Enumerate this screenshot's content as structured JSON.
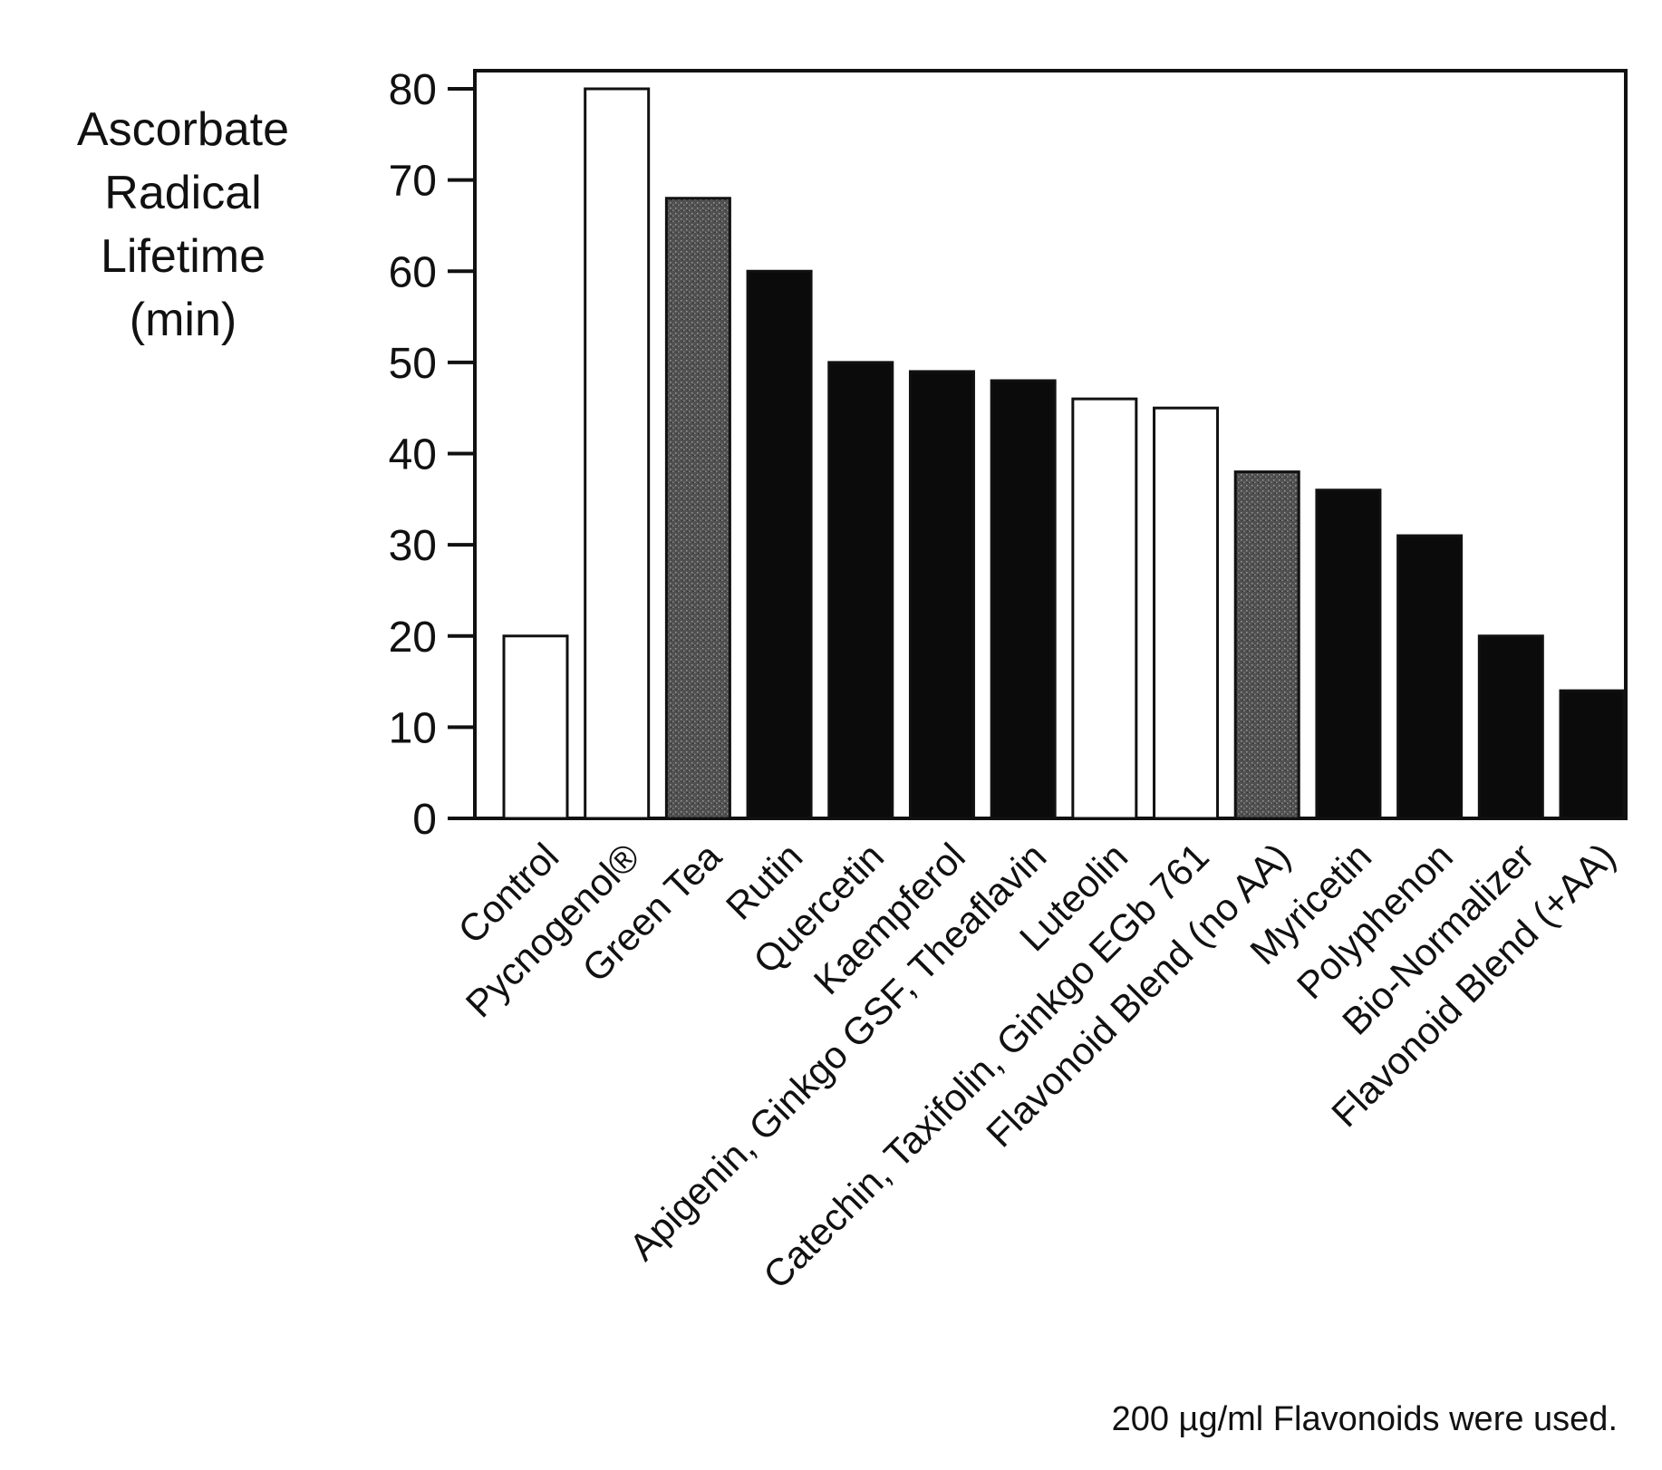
{
  "chart_data": {
    "type": "bar",
    "ylabel": [
      "Ascorbate",
      "Radical",
      "Lifetime",
      "(min)"
    ],
    "xlabel": "",
    "ylim": [
      0,
      80
    ],
    "yticks": [
      0,
      10,
      20,
      30,
      40,
      50,
      60,
      70,
      80
    ],
    "grid": false,
    "legend": "none",
    "categories": [
      "Control",
      "Pycnogenol®",
      "Green Tea",
      "Rutin",
      "Quercetin",
      "Kaempferol",
      "Apigenin, Ginkgo GSF, Theaflavin",
      "Luteolin",
      "Catechin, Taxifolin, Ginkgo EGb 761",
      "Flavonoid Blend (no AA)",
      "Myricetin",
      "Polyphenon",
      "Bio-Normalizer",
      "Flavonoid Blend (+AA)"
    ],
    "values": [
      20,
      80,
      68,
      60,
      50,
      49,
      48,
      46,
      45,
      38,
      36,
      31,
      20,
      14
    ],
    "fills": [
      "white",
      "white",
      "gray",
      "black",
      "black",
      "black",
      "black",
      "white",
      "white",
      "gray",
      "black",
      "black",
      "black",
      "black"
    ],
    "colors": {
      "white": "#ffffff",
      "gray": "#4a4a4a",
      "black": "#0b0b0b",
      "outline": "#111111"
    },
    "note": "200 µg/ml Flavonoids were used."
  }
}
